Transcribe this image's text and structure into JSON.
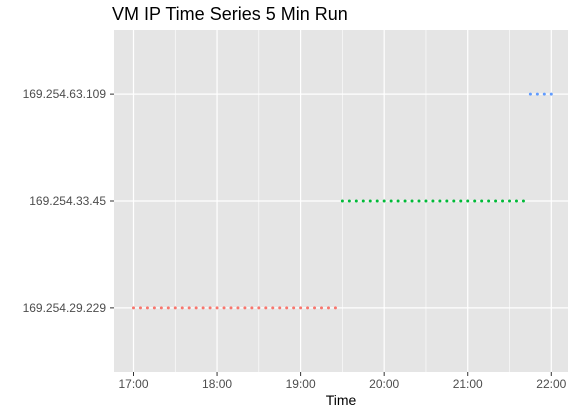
{
  "chart_data": {
    "type": "scatter",
    "title": "VM IP Time Series 5 Min Run",
    "xlabel": "Time",
    "ylabel": "",
    "xlim": [
      "16:46",
      "22:12"
    ],
    "x_ticks": [
      "17:00",
      "18:00",
      "19:00",
      "20:00",
      "21:00",
      "22:00"
    ],
    "y_categories": [
      "169.254.29.229",
      "169.254.33.45",
      "169.254.63.109"
    ],
    "grid": true,
    "legend": "none",
    "panel_background": "#e5e5e5",
    "grid_color": "#ffffff",
    "series": [
      {
        "category": "169.254.29.229",
        "color": "#f8766d",
        "start": "17:00",
        "end": "19:25",
        "interval_minutes": 5
      },
      {
        "category": "169.254.33.45",
        "color": "#00ba38",
        "start": "19:30",
        "end": "21:40",
        "interval_minutes": 5
      },
      {
        "category": "169.254.63.109",
        "color": "#619cff",
        "start": "21:45",
        "end": "22:00",
        "interval_minutes": 5
      }
    ]
  }
}
